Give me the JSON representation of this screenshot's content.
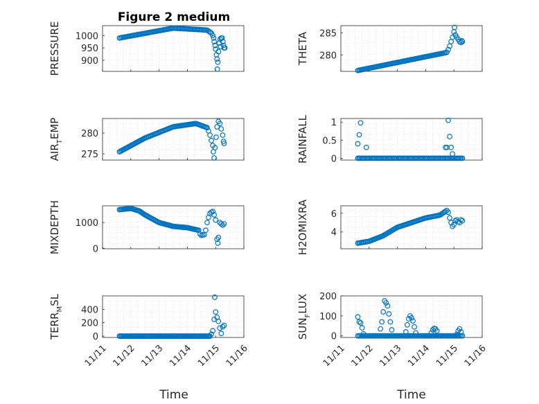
{
  "figure": {
    "title": "Figure 2 medium",
    "marker_color": "#0072BD",
    "axis_color": "#262626",
    "grid_color": "#d0d0d0",
    "grid": true,
    "x_axis_label": "Time",
    "x_tick_labels": [
      "11/11",
      "11/12",
      "11/13",
      "11/14",
      "11/15",
      "11/16"
    ]
  },
  "chart_data": [
    {
      "id": "pressure",
      "type": "scatter",
      "title": "Figure 2 medium",
      "ylabel": {
        "main": "PRESSURE",
        "sub": "",
        "rest": ""
      },
      "xlabel": "",
      "xlim": [
        0,
        5
      ],
      "ylim": [
        855,
        1040
      ],
      "yticks": [
        900,
        950,
        1000
      ],
      "ytick_labels": [
        "900",
        "950",
        "1000"
      ],
      "segments": [
        {
          "x": [
            0.6,
            2.5,
            3.7,
            3.85
          ],
          "y": [
            990,
            1030,
            1022,
            1010
          ],
          "n": 80
        }
      ],
      "points": [
        [
          3.9,
          1000
        ],
        [
          3.93,
          990
        ],
        [
          3.95,
          975
        ],
        [
          3.98,
          960
        ],
        [
          4.0,
          945
        ],
        [
          4.03,
          922
        ],
        [
          4.05,
          905
        ],
        [
          4.08,
          892
        ],
        [
          4.06,
          864
        ],
        [
          4.1,
          935
        ],
        [
          4.13,
          970
        ],
        [
          4.16,
          985
        ],
        [
          4.2,
          990
        ],
        [
          4.23,
          990
        ],
        [
          4.26,
          975
        ],
        [
          4.28,
          960
        ],
        [
          4.3,
          950
        ],
        [
          4.33,
          950
        ],
        [
          4.18,
          955
        ]
      ]
    },
    {
      "id": "theta",
      "type": "scatter",
      "ylabel": {
        "main": "THETA",
        "sub": "",
        "rest": ""
      },
      "xlabel": "",
      "xlim": [
        0,
        5
      ],
      "ylim": [
        276.3,
        286.6
      ],
      "yticks": [
        280,
        285
      ],
      "ytick_labels": [
        "280",
        "285"
      ],
      "segments": [
        {
          "x": [
            0.6,
            3.7
          ],
          "y": [
            276.5,
            280.5
          ],
          "n": 75
        }
      ],
      "points": [
        [
          3.75,
          280.6
        ],
        [
          3.8,
          281.2
        ],
        [
          3.85,
          282.0
        ],
        [
          3.9,
          283.0
        ],
        [
          3.95,
          284.0
        ],
        [
          4.0,
          285.2
        ],
        [
          4.02,
          286.2
        ],
        [
          4.05,
          284.5
        ],
        [
          4.1,
          284.0
        ],
        [
          4.15,
          283.5
        ],
        [
          4.2,
          283.0
        ],
        [
          4.25,
          282.8
        ],
        [
          4.28,
          283.2
        ],
        [
          4.3,
          283.0
        ]
      ]
    },
    {
      "id": "air_temp",
      "type": "scatter",
      "ylabel": {
        "main": "AIR",
        "sub": "T",
        "rest": "EMP"
      },
      "xlabel": "",
      "xlim": [
        0,
        5
      ],
      "ylim": [
        273.5,
        283.5
      ],
      "yticks": [
        275,
        280
      ],
      "ytick_labels": [
        "275",
        "280"
      ],
      "segments": [
        {
          "x": [
            0.6,
            1.5,
            2.5,
            3.3,
            3.7
          ],
          "y": [
            275.5,
            278.8,
            281.5,
            282.3,
            281.3
          ],
          "n": 85
        }
      ],
      "points": [
        [
          3.75,
          280.5
        ],
        [
          3.8,
          279.5
        ],
        [
          3.85,
          278.2
        ],
        [
          3.9,
          277.0
        ],
        [
          3.92,
          275.5
        ],
        [
          3.95,
          274.0
        ],
        [
          3.98,
          276.5
        ],
        [
          4.02,
          279.0
        ],
        [
          4.05,
          281.5
        ],
        [
          4.1,
          282.8
        ],
        [
          4.15,
          282.3
        ],
        [
          4.2,
          281.0
        ],
        [
          4.25,
          279.5
        ],
        [
          4.28,
          278.0
        ],
        [
          4.3,
          277.5
        ]
      ]
    },
    {
      "id": "rainfall",
      "type": "scatter",
      "ylabel": {
        "main": "RAINFALL",
        "sub": "",
        "rest": ""
      },
      "xlabel": "",
      "xlim": [
        0,
        5
      ],
      "ylim": [
        -0.05,
        1.1
      ],
      "yticks": [
        0,
        0.5,
        1
      ],
      "ytick_labels": [
        "0",
        "0.5",
        "1"
      ],
      "segments": [
        {
          "x": [
            0.6,
            4.3
          ],
          "y": [
            0,
            0
          ],
          "n": 95
        }
      ],
      "points": [
        [
          0.6,
          0.4
        ],
        [
          0.65,
          0.65
        ],
        [
          0.7,
          0.98
        ],
        [
          0.9,
          0.3
        ],
        [
          3.7,
          0.3
        ],
        [
          3.75,
          0.3
        ],
        [
          3.8,
          1.05
        ],
        [
          3.85,
          0.6
        ],
        [
          3.9,
          0.3
        ],
        [
          3.95,
          0.12
        ]
      ]
    },
    {
      "id": "mixdepth",
      "type": "scatter",
      "ylabel": {
        "main": "MIXDEPTH",
        "sub": "",
        "rest": ""
      },
      "xlabel": "",
      "xlim": [
        0,
        5
      ],
      "ylim": [
        -20,
        1650
      ],
      "yticks": [
        0,
        1000
      ],
      "ytick_labels": [
        "0",
        "1000"
      ],
      "segments": [
        {
          "x": [
            0.6,
            1.0,
            1.3,
            1.5,
            2.0,
            2.5,
            3.0,
            3.4
          ],
          "y": [
            1500,
            1550,
            1450,
            1300,
            1000,
            850,
            800,
            700
          ],
          "n": 80
        }
      ],
      "points": [
        [
          3.45,
          550
        ],
        [
          3.5,
          500
        ],
        [
          3.55,
          520
        ],
        [
          3.6,
          530
        ],
        [
          3.65,
          700
        ],
        [
          3.7,
          1000
        ],
        [
          3.75,
          1200
        ],
        [
          3.8,
          1350
        ],
        [
          3.85,
          1400
        ],
        [
          3.9,
          1430
        ],
        [
          3.95,
          1300
        ],
        [
          4.0,
          1100
        ],
        [
          4.05,
          350
        ],
        [
          4.08,
          200
        ],
        [
          4.1,
          420
        ],
        [
          4.15,
          1000
        ],
        [
          4.2,
          950
        ],
        [
          4.25,
          900
        ],
        [
          4.3,
          950
        ]
      ]
    },
    {
      "id": "h2omixra",
      "type": "scatter",
      "ylabel": {
        "main": "H2OMIXRA",
        "sub": "",
        "rest": ""
      },
      "xlabel": "",
      "xlim": [
        0,
        5
      ],
      "ylim": [
        2.2,
        6.8
      ],
      "yticks": [
        4,
        6
      ],
      "ytick_labels": [
        "4",
        "6"
      ],
      "segments": [
        {
          "x": [
            0.6,
            1.0,
            1.5,
            2.0,
            2.5,
            3.0,
            3.5,
            3.7
          ],
          "y": [
            2.8,
            3.0,
            3.6,
            4.5,
            5.0,
            5.5,
            5.8,
            6.2
          ],
          "n": 80
        }
      ],
      "points": [
        [
          3.75,
          6.3
        ],
        [
          3.8,
          6.1
        ],
        [
          3.85,
          5.5
        ],
        [
          3.9,
          5.0
        ],
        [
          3.95,
          4.6
        ],
        [
          4.0,
          4.8
        ],
        [
          4.05,
          5.2
        ],
        [
          4.1,
          5.3
        ],
        [
          4.15,
          5.1
        ],
        [
          4.2,
          5.0
        ],
        [
          4.25,
          5.3
        ],
        [
          4.3,
          5.2
        ]
      ]
    },
    {
      "id": "terr_msl",
      "type": "scatter",
      "ylabel": {
        "main": "TERR",
        "sub": "M",
        "rest": "SL"
      },
      "xlabel": "Time",
      "xlim": [
        0,
        5
      ],
      "ylim": [
        -20,
        600
      ],
      "yticks": [
        0,
        200,
        400
      ],
      "ytick_labels": [
        "0",
        "200",
        "400"
      ],
      "xticks": [
        0,
        1,
        2,
        3,
        4,
        5
      ],
      "xtick_labels": [
        "11/11",
        "11/12",
        "11/13",
        "11/14",
        "11/15",
        "11/16"
      ],
      "segments": [
        {
          "x": [
            0.6,
            3.8
          ],
          "y": [
            0,
            0
          ],
          "n": 90
        }
      ],
      "points": [
        [
          3.85,
          30
        ],
        [
          3.9,
          80
        ],
        [
          3.95,
          250
        ],
        [
          3.97,
          580
        ],
        [
          4.0,
          360
        ],
        [
          4.05,
          280
        ],
        [
          4.1,
          220
        ],
        [
          4.15,
          120
        ],
        [
          4.2,
          40
        ],
        [
          4.25,
          140
        ],
        [
          4.3,
          160
        ]
      ]
    },
    {
      "id": "sun_flux",
      "type": "scatter",
      "ylabel": {
        "main": "SUN",
        "sub": "F",
        "rest": "LUX"
      },
      "xlabel": "Time",
      "xlim": [
        0,
        5
      ],
      "ylim": [
        -8,
        200
      ],
      "yticks": [
        0,
        100,
        200
      ],
      "ytick_labels": [
        "0",
        "100",
        "200"
      ],
      "xticks": [
        0,
        1,
        2,
        3,
        4,
        5
      ],
      "xtick_labels": [
        "11/11",
        "11/12",
        "11/13",
        "11/14",
        "11/15",
        "11/16"
      ],
      "segments": [
        {
          "x": [
            0.6,
            4.3
          ],
          "y": [
            0,
            0
          ],
          "n": 85
        }
      ],
      "points": [
        [
          0.6,
          95
        ],
        [
          0.65,
          70
        ],
        [
          0.7,
          65
        ],
        [
          0.75,
          40
        ],
        [
          0.8,
          10
        ],
        [
          1.4,
          35
        ],
        [
          1.45,
          70
        ],
        [
          1.5,
          120
        ],
        [
          1.55,
          175
        ],
        [
          1.6,
          165
        ],
        [
          1.65,
          150
        ],
        [
          1.7,
          110
        ],
        [
          1.75,
          70
        ],
        [
          1.8,
          30
        ],
        [
          2.3,
          20
        ],
        [
          2.35,
          55
        ],
        [
          2.4,
          85
        ],
        [
          2.45,
          100
        ],
        [
          2.5,
          90
        ],
        [
          2.55,
          75
        ],
        [
          2.6,
          45
        ],
        [
          2.65,
          15
        ],
        [
          3.2,
          15
        ],
        [
          3.25,
          30
        ],
        [
          3.3,
          38
        ],
        [
          3.35,
          35
        ],
        [
          3.4,
          25
        ],
        [
          4.1,
          8
        ],
        [
          4.15,
          25
        ],
        [
          4.2,
          35
        ],
        [
          4.25,
          20
        ]
      ]
    }
  ]
}
